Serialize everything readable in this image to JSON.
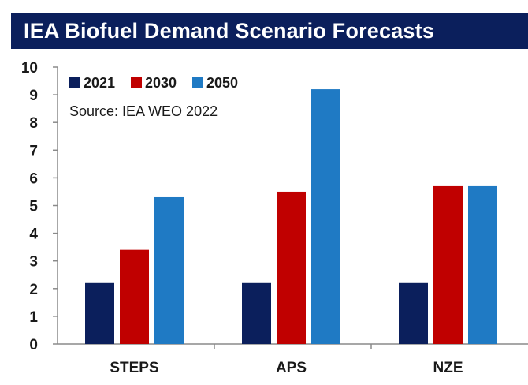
{
  "header": {
    "title": "IEA Biofuel Demand Scenario Forecasts",
    "background_color": "#0b1f5c"
  },
  "source_note": "Source: IEA WEO 2022",
  "chart_data": {
    "type": "bar",
    "title": "IEA Biofuel Demand Scenario Forecasts",
    "xlabel": "",
    "ylabel": "",
    "categories": [
      "STEPS",
      "APS",
      "NZE"
    ],
    "series": [
      {
        "name": "2021",
        "color": "#0b1f5c",
        "values": [
          2.2,
          2.2,
          2.2
        ]
      },
      {
        "name": "2030",
        "color": "#c00000",
        "values": [
          3.4,
          5.5,
          5.7
        ]
      },
      {
        "name": "2050",
        "color": "#1f7ac4",
        "values": [
          5.3,
          9.2,
          5.7
        ]
      }
    ],
    "ylim": [
      0,
      10
    ],
    "yticks": [
      "0",
      "1",
      "2",
      "3",
      "4",
      "5",
      "6",
      "7",
      "8",
      "9",
      "10"
    ],
    "grid": false,
    "legend_position": "top-left"
  }
}
